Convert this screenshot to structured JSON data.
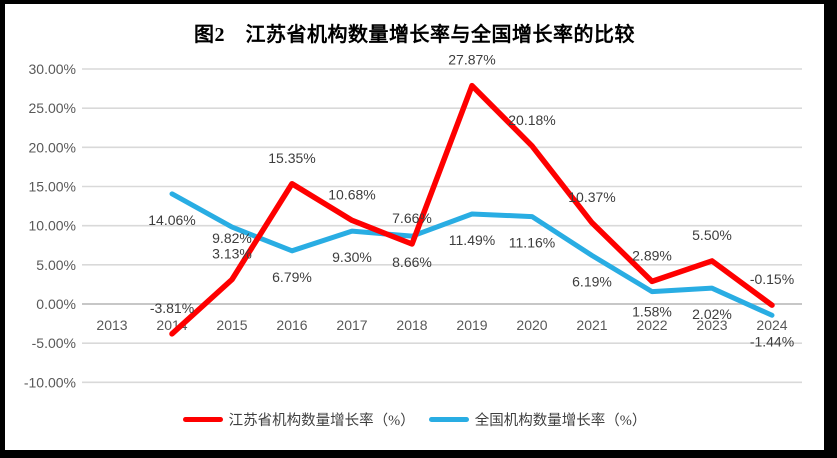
{
  "frame": {
    "border_color": "#000000",
    "background": "#ffffff"
  },
  "chart_data": {
    "type": "line",
    "title": "图2　江苏省机构数量增长率与全国增长率的比较",
    "categories": [
      "2013",
      "2014",
      "2015",
      "2016",
      "2017",
      "2018",
      "2019",
      "2020",
      "2021",
      "2022",
      "2023",
      "2024"
    ],
    "series": [
      {
        "name": "江苏省机构数量增长率（%）",
        "color": "#FE0000",
        "label_position": "above",
        "values": [
          null,
          -3.81,
          3.13,
          15.35,
          10.68,
          7.66,
          27.87,
          20.18,
          10.37,
          2.89,
          5.5,
          -0.15
        ]
      },
      {
        "name": "全国机构数量增长率（%）",
        "color": "#29ADE3",
        "label_position": "below",
        "values": [
          null,
          14.06,
          9.82,
          6.79,
          9.3,
          8.66,
          11.49,
          11.16,
          6.19,
          1.58,
          2.02,
          -1.44
        ]
      }
    ],
    "ylim": [
      -10,
      30
    ],
    "ytick_step": 5,
    "ytick_labels": [
      "30.00%",
      "25.00%",
      "20.00%",
      "15.00%",
      "10.00%",
      "5.00%",
      "0.00%",
      "-5.00%",
      "-10.00%"
    ],
    "grid": true,
    "legend_position": "bottom",
    "colors": {
      "gridline": "#D9D9D9",
      "zeroline": "#BFBFBF",
      "axis_text": "#595959",
      "data_label_text": "#3d3d3d"
    }
  }
}
